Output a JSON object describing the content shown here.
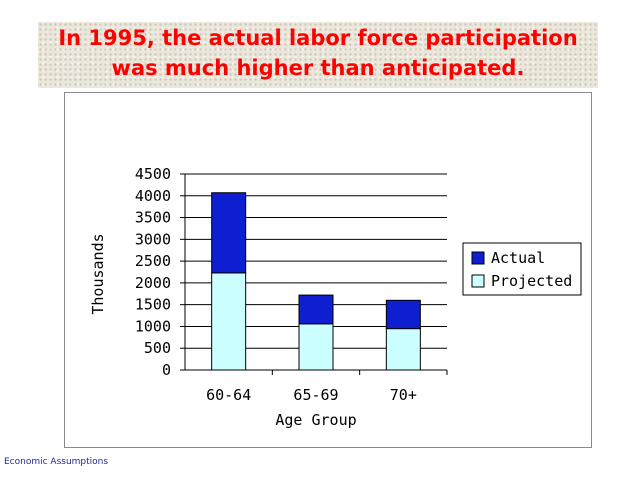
{
  "title": {
    "line1": "In 1995, the actual labor force participation",
    "line2": "was much higher than anticipated."
  },
  "footer": "Economic Assumptions",
  "colors": {
    "actual": "#0d1fd1",
    "projected": "#ccffff",
    "title": "#ff0000",
    "footer": "#1f2a9a"
  },
  "chart_data": {
    "type": "bar",
    "stacked": true,
    "categories": [
      "60-64",
      "65-69",
      "70+"
    ],
    "series": [
      {
        "name": "Projected",
        "values": [
          2230,
          1060,
          950
        ]
      },
      {
        "name": "Actual",
        "values": [
          1840,
          660,
          650
        ]
      }
    ],
    "xlabel": "Age Group",
    "ylabel": "Thousands",
    "ylim": [
      0,
      4500
    ],
    "yticks": [
      "0",
      "500",
      "1000",
      "1500",
      "2000",
      "2500",
      "3000",
      "3500",
      "4000",
      "4500"
    ],
    "grid": true,
    "legend": {
      "placement": "right",
      "entries": [
        "Actual",
        "Projected"
      ]
    }
  }
}
